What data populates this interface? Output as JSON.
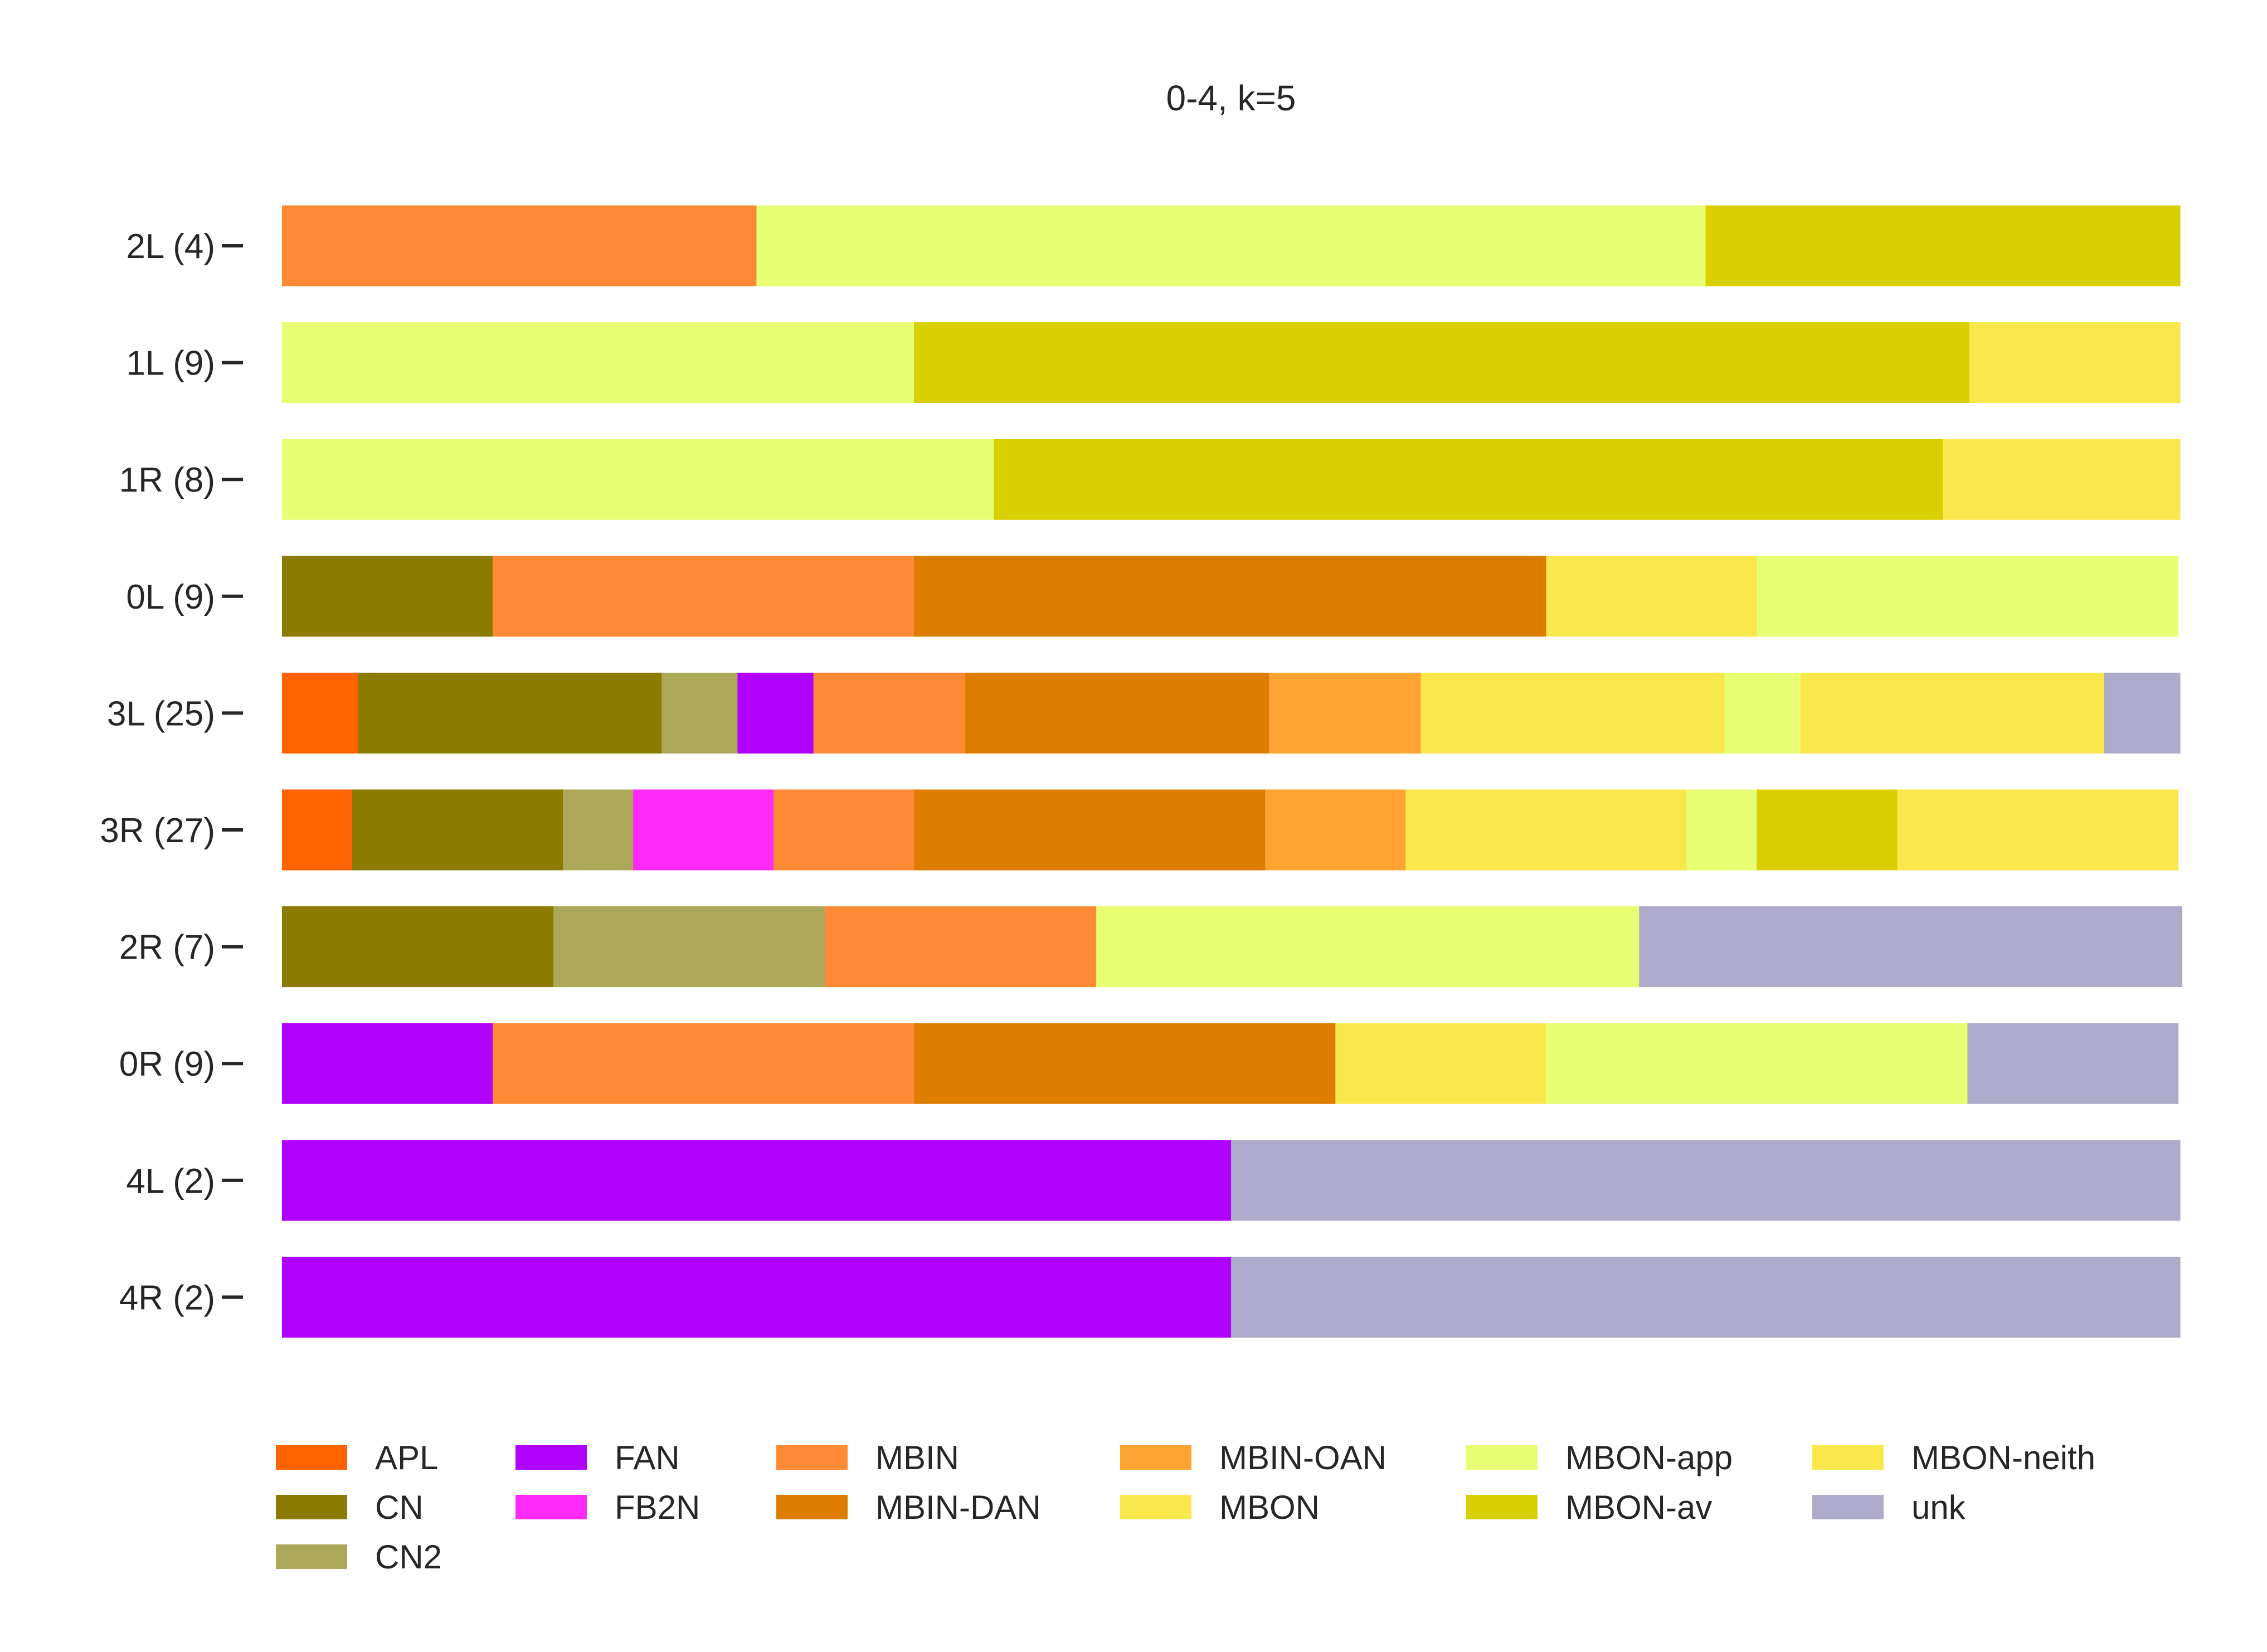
{
  "chart_data": {
    "type": "bar",
    "orientation": "horizontal-stacked",
    "title": "0-4, k=5",
    "xlabel": "",
    "ylabel": "",
    "xlim": [
      0,
      1
    ],
    "grid": false,
    "legend_position": "bottom",
    "categories": [
      "2L (4)",
      "1L (9)",
      "1R (8)",
      "0L (9)",
      "3L (25)",
      "3R (27)",
      "2R (7)",
      "0R (9)",
      "4L (2)",
      "4R (2)"
    ],
    "series": [
      {
        "name": "APL",
        "color": "#ff6200",
        "values": [
          0,
          0,
          0,
          0,
          0.04,
          0.037,
          0,
          0,
          0,
          0
        ]
      },
      {
        "name": "CN",
        "color": "#8b7b00",
        "values": [
          0,
          0,
          0,
          0.111,
          0.16,
          0.111,
          0.143,
          0,
          0,
          0
        ]
      },
      {
        "name": "CN2",
        "color": "#aca85a",
        "values": [
          0,
          0,
          0,
          0,
          0.04,
          0.037,
          0.143,
          0,
          0,
          0
        ]
      },
      {
        "name": "FAN",
        "color": "#b000ff",
        "values": [
          0,
          0,
          0,
          0,
          0.04,
          0,
          0,
          0.111,
          0.5,
          0.5
        ]
      },
      {
        "name": "FB2N",
        "color": "#ff2af5",
        "values": [
          0,
          0,
          0,
          0,
          0,
          0.074,
          0,
          0,
          0,
          0
        ]
      },
      {
        "name": "MBIN",
        "color": "#ff8a35",
        "values": [
          0.25,
          0,
          0,
          0.222,
          0.08,
          0.074,
          0.143,
          0.222,
          0,
          0
        ]
      },
      {
        "name": "MBIN-DAN",
        "color": "#dc7d00",
        "values": [
          0,
          0,
          0,
          0.333,
          0.16,
          0.185,
          0,
          0.222,
          0,
          0
        ]
      },
      {
        "name": "MBIN-OAN",
        "color": "#ffa333",
        "values": [
          0,
          0,
          0,
          0,
          0.08,
          0.074,
          0,
          0,
          0,
          0
        ]
      },
      {
        "name": "MBON",
        "color": "#f9e84c",
        "values": [
          0,
          0,
          0,
          0.111,
          0.16,
          0.148,
          0,
          0.111,
          0,
          0
        ]
      },
      {
        "name": "MBON-app",
        "color": "#e8ff73",
        "values": [
          0.5,
          0.333,
          0.375,
          0.222,
          0.04,
          0.037,
          0.286,
          0.222,
          0,
          0
        ]
      },
      {
        "name": "MBON-av",
        "color": "#d8d000",
        "values": [
          0.25,
          0.556,
          0.5,
          0,
          0,
          0.074,
          0,
          0,
          0,
          0
        ]
      },
      {
        "name": "MBON-neith",
        "color": "#f9e84c",
        "values": [
          0,
          0.111,
          0.125,
          0,
          0.16,
          0.148,
          0,
          0,
          0,
          0
        ]
      },
      {
        "name": "unk",
        "color": "#adaaca",
        "values": [
          0,
          0,
          0,
          0,
          0.04,
          0,
          0.286,
          0.111,
          0.5,
          0.5
        ]
      }
    ]
  }
}
